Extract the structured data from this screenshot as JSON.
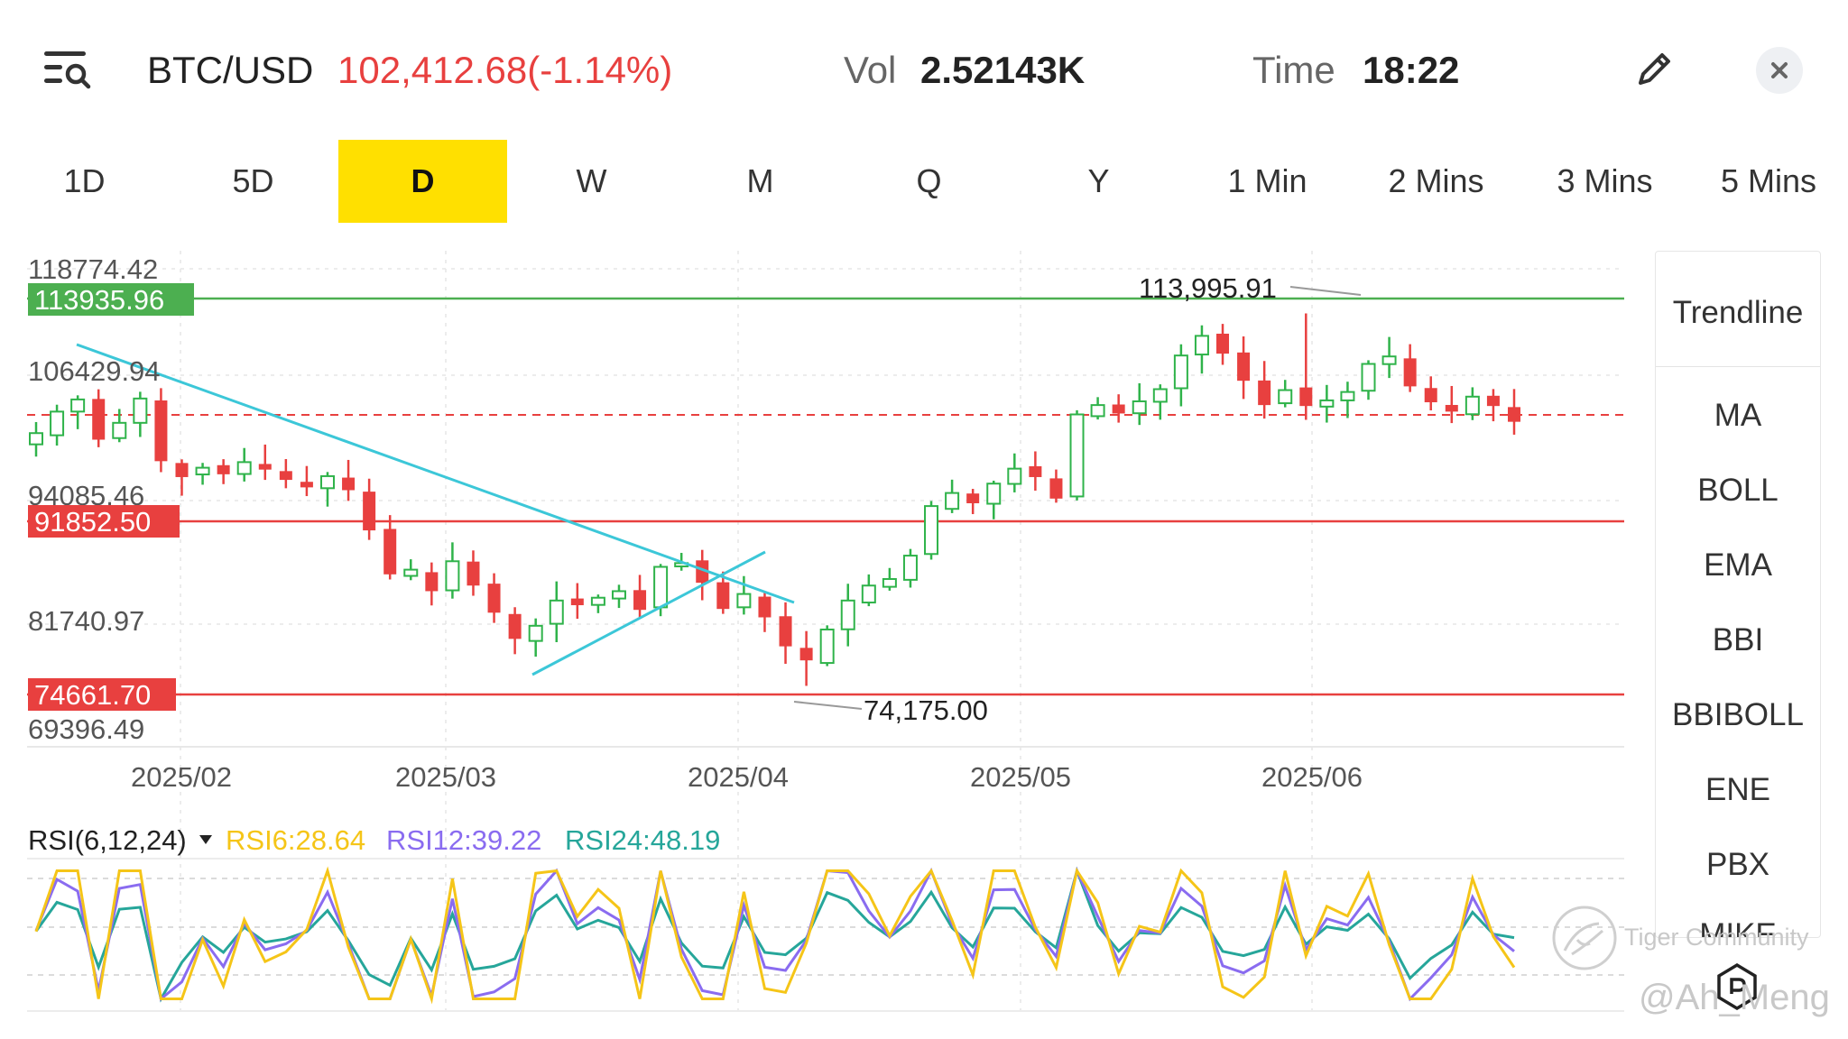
{
  "header": {
    "pair": "BTC/USD",
    "price": "102,412.68(-1.14%)",
    "vol_label": "Vol",
    "vol_value": "2.52143K",
    "time_label": "Time",
    "time_value": "18:22",
    "menu_icon": "menu-search-icon",
    "edit_icon": "pencil-icon",
    "close_icon": "close-icon"
  },
  "tabs": [
    "1D",
    "5D",
    "D",
    "W",
    "M",
    "Q",
    "Y",
    "1 Min",
    "2 Mins",
    "3 Mins",
    "5 Mins"
  ],
  "active_tab": "D",
  "indicators": [
    "Trendline",
    "MA",
    "BOLL",
    "EMA",
    "BBI",
    "BBIBOLL",
    "ENE",
    "PBX",
    "MIKE"
  ],
  "chart": {
    "y_labels": [
      "118774.42",
      "106429.94",
      "94085.46",
      "81740.97",
      "69396.49"
    ],
    "level_lines": [
      {
        "label": "113935.96",
        "value": 113935.96,
        "color": "#4caf50"
      },
      {
        "label": "91852.50",
        "value": 91852.5,
        "color": "#e8403f"
      },
      {
        "label": "74661.70",
        "value": 74661.7,
        "color": "#e8403f"
      }
    ],
    "current_price_line": 102412.68,
    "annotations": [
      {
        "text": "113,995.91",
        "value": 113995.91
      },
      {
        "text": "74,175.00",
        "value": 74175.0
      }
    ],
    "x_labels": [
      "2025/02",
      "2025/03",
      "2025/04",
      "2025/05",
      "2025/06"
    ],
    "colors": {
      "up": "#2fb34a",
      "down": "#e8403f",
      "trendline": "#3cc7d8"
    }
  },
  "rsi": {
    "title": "RSI(6,12,24)",
    "rsi6": "RSI6:28.64",
    "rsi12": "RSI12:39.22",
    "rsi24": "RSI24:48.19",
    "colors": {
      "rsi6": "#f5c518",
      "rsi12": "#8a6cf0",
      "rsi24": "#26a69a"
    }
  },
  "watermark": {
    "community": "Tiger Community",
    "user": "@Ah_Meng"
  },
  "chart_data": {
    "type": "candlestick",
    "x_labels": [
      "2025/02",
      "2025/03",
      "2025/04",
      "2025/05",
      "2025/06"
    ],
    "ylim": [
      69396.49,
      118774.42
    ],
    "y_ticks": [
      118774.42,
      106429.94,
      94085.46,
      81740.97,
      69396.49
    ],
    "horizontal_levels": [
      113935.96,
      91852.5,
      74661.7
    ],
    "last_price": 102412.68,
    "marked_high": 113995.91,
    "marked_low": 74175.0,
    "close_series": [
      101200,
      103500,
      104800,
      100500,
      102300,
      104900,
      98200,
      96500,
      97500,
      96800,
      98100,
      97300,
      96200,
      95400,
      96600,
      95100,
      90800,
      86100,
      86600,
      84300,
      87500,
      84900,
      82000,
      79200,
      80600,
      83300,
      82800,
      83600,
      84300,
      82300,
      86900,
      87300,
      85200,
      82400,
      84000,
      81500,
      78400,
      76900,
      80200,
      83300,
      84900,
      85600,
      88100,
      93400,
      94800,
      93700,
      95800,
      97400,
      96500,
      94200,
      103200,
      104200,
      103300,
      104600,
      105900,
      109500,
      111600,
      109700,
      106800,
      104200,
      105800,
      104100,
      104700,
      105600,
      108600,
      109400,
      106200,
      104500,
      103500,
      105100,
      104100,
      102412.68
    ],
    "rsi": {
      "rsi6": 28.64,
      "rsi12": 39.22,
      "rsi24": 48.19
    }
  }
}
